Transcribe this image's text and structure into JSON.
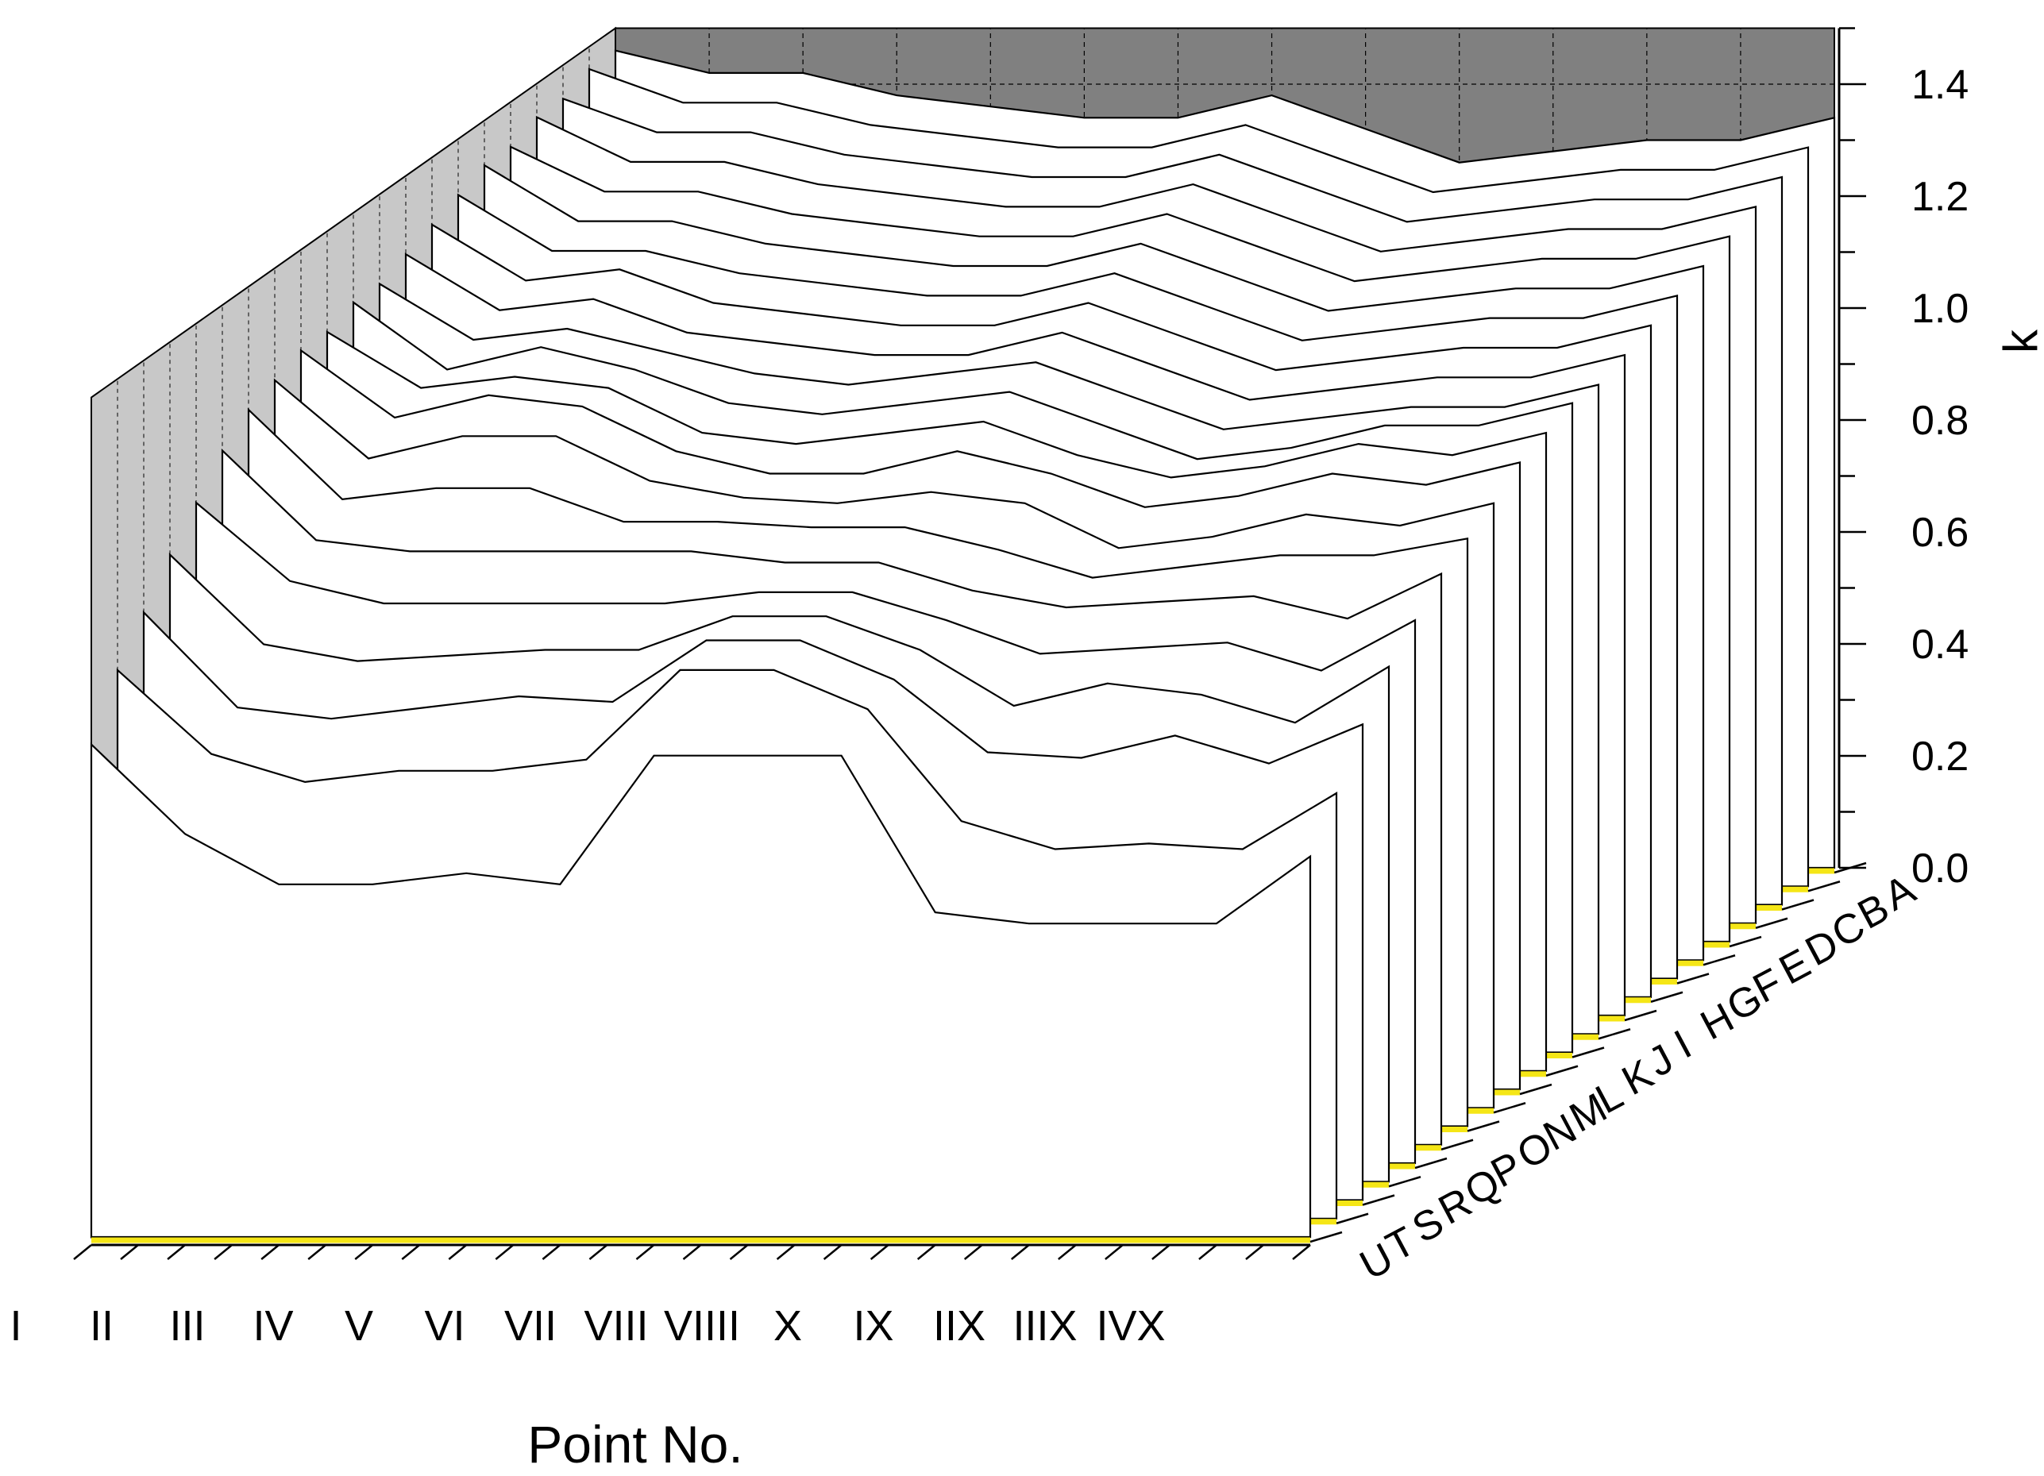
{
  "chart_data": {
    "type": "3d-waterfall",
    "xlabel": "Point No.",
    "zlabel": "k",
    "x_categories": [
      "I",
      "II",
      "III",
      "IV",
      "V",
      "VI",
      "VII",
      "VIII",
      "VIIII",
      "X",
      "IX",
      "IIX",
      "IIIX",
      "IVX"
    ],
    "y_categories": [
      "U",
      "T",
      "S",
      "R",
      "Q",
      "P",
      "O",
      "N",
      "M",
      "L",
      "K",
      "J",
      "I",
      "H",
      "G",
      "F",
      "E",
      "D",
      "C",
      "B",
      "A"
    ],
    "zlim": [
      0,
      1.5
    ],
    "zticks": [
      "0.0",
      "0.2",
      "0.4",
      "0.6",
      "0.8",
      "1.0",
      "1.2",
      "1.4"
    ],
    "grid": true,
    "series": [
      {
        "name": "U",
        "values": [
          0.88,
          0.72,
          0.63,
          0.63,
          0.65,
          0.63,
          0.86,
          0.86,
          0.86,
          0.58,
          0.56,
          0.56,
          0.56,
          0.68
        ]
      },
      {
        "name": "T",
        "values": [
          0.98,
          0.83,
          0.78,
          0.8,
          0.8,
          0.82,
          0.98,
          0.98,
          0.91,
          0.71,
          0.66,
          0.67,
          0.66,
          0.76
        ]
      },
      {
        "name": "S",
        "values": [
          1.05,
          0.88,
          0.86,
          0.88,
          0.9,
          0.89,
          1.0,
          1.0,
          0.93,
          0.8,
          0.79,
          0.83,
          0.78,
          0.85
        ]
      },
      {
        "name": "R",
        "values": [
          1.12,
          0.96,
          0.93,
          0.94,
          0.95,
          0.95,
          1.01,
          1.01,
          0.95,
          0.85,
          0.89,
          0.87,
          0.82,
          0.92
        ]
      },
      {
        "name": "Q",
        "values": [
          1.18,
          1.04,
          1.0,
          1.0,
          1.0,
          1.0,
          1.02,
          1.02,
          0.97,
          0.91,
          0.92,
          0.93,
          0.88,
          0.97
        ]
      },
      {
        "name": "P",
        "values": [
          1.24,
          1.08,
          1.06,
          1.06,
          1.06,
          1.06,
          1.04,
          1.04,
          0.99,
          0.96,
          0.97,
          0.98,
          0.94,
          1.02
        ]
      },
      {
        "name": "O",
        "values": [
          1.28,
          1.12,
          1.14,
          1.14,
          1.08,
          1.08,
          1.07,
          1.07,
          1.03,
          0.98,
          1.0,
          1.02,
          1.02,
          1.05
        ]
      },
      {
        "name": "N",
        "values": [
          1.3,
          1.16,
          1.2,
          1.2,
          1.12,
          1.09,
          1.08,
          1.1,
          1.08,
          1.0,
          1.02,
          1.06,
          1.04,
          1.08
        ]
      },
      {
        "name": "M",
        "values": [
          1.32,
          1.2,
          1.24,
          1.22,
          1.14,
          1.1,
          1.1,
          1.14,
          1.1,
          1.04,
          1.06,
          1.1,
          1.08,
          1.12
        ]
      },
      {
        "name": "L",
        "values": [
          1.32,
          1.22,
          1.24,
          1.22,
          1.14,
          1.12,
          1.14,
          1.16,
          1.1,
          1.06,
          1.08,
          1.12,
          1.1,
          1.14
        ]
      },
      {
        "name": "K",
        "values": [
          1.34,
          1.22,
          1.26,
          1.22,
          1.16,
          1.14,
          1.16,
          1.18,
          1.12,
          1.06,
          1.08,
          1.12,
          1.12,
          1.16
        ]
      },
      {
        "name": "J",
        "values": [
          1.34,
          1.24,
          1.26,
          1.22,
          1.18,
          1.16,
          1.18,
          1.2,
          1.14,
          1.08,
          1.1,
          1.12,
          1.12,
          1.16
        ]
      },
      {
        "name": "I",
        "values": [
          1.36,
          1.26,
          1.28,
          1.22,
          1.2,
          1.18,
          1.18,
          1.22,
          1.16,
          1.1,
          1.12,
          1.14,
          1.14,
          1.18
        ]
      },
      {
        "name": "H",
        "values": [
          1.38,
          1.28,
          1.3,
          1.24,
          1.22,
          1.2,
          1.2,
          1.24,
          1.18,
          1.12,
          1.14,
          1.16,
          1.16,
          1.2
        ]
      },
      {
        "name": "G",
        "values": [
          1.4,
          1.3,
          1.3,
          1.26,
          1.24,
          1.22,
          1.22,
          1.26,
          1.2,
          1.14,
          1.16,
          1.18,
          1.18,
          1.22
        ]
      },
      {
        "name": "F",
        "values": [
          1.42,
          1.32,
          1.32,
          1.28,
          1.26,
          1.24,
          1.24,
          1.28,
          1.22,
          1.16,
          1.18,
          1.2,
          1.2,
          1.24
        ]
      },
      {
        "name": "E",
        "values": [
          1.42,
          1.34,
          1.34,
          1.3,
          1.28,
          1.26,
          1.26,
          1.3,
          1.24,
          1.18,
          1.2,
          1.22,
          1.22,
          1.26
        ]
      },
      {
        "name": "D",
        "values": [
          1.44,
          1.36,
          1.36,
          1.32,
          1.3,
          1.28,
          1.28,
          1.32,
          1.26,
          1.2,
          1.22,
          1.24,
          1.24,
          1.28
        ]
      },
      {
        "name": "C",
        "values": [
          1.44,
          1.38,
          1.38,
          1.34,
          1.32,
          1.3,
          1.3,
          1.34,
          1.28,
          1.22,
          1.24,
          1.26,
          1.26,
          1.3
        ]
      },
      {
        "name": "B",
        "values": [
          1.46,
          1.4,
          1.4,
          1.36,
          1.34,
          1.32,
          1.32,
          1.36,
          1.3,
          1.24,
          1.26,
          1.28,
          1.28,
          1.32
        ]
      },
      {
        "name": "A",
        "values": [
          1.46,
          1.42,
          1.42,
          1.38,
          1.36,
          1.34,
          1.34,
          1.38,
          1.32,
          1.26,
          1.28,
          1.3,
          1.3,
          1.34
        ]
      }
    ]
  },
  "colors": {
    "back_wall": "#808080",
    "side_wall": "#c8c8c8",
    "floor_strip": "#f5e616",
    "slice_fill": "#ffffff",
    "line": "#000000"
  }
}
